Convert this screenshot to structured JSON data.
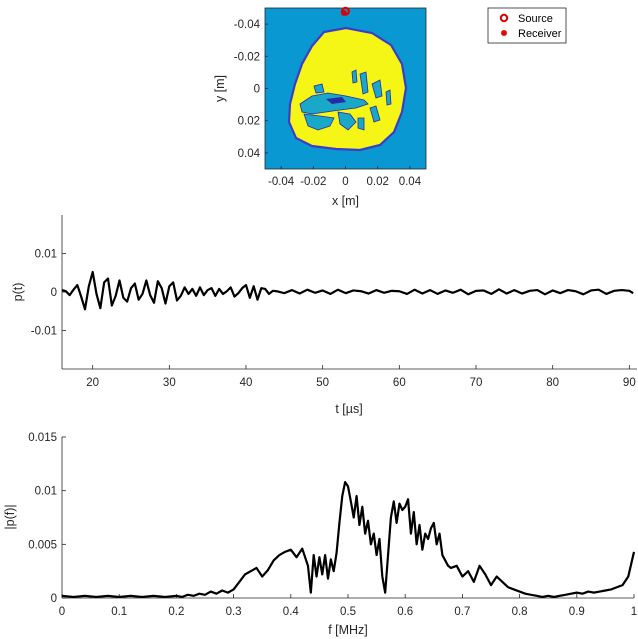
{
  "figure": {
    "legend": {
      "placement": "top-right",
      "entries": [
        {
          "label": "Source",
          "marker": "circle",
          "color": "#e00000"
        },
        {
          "label": "Receiver",
          "marker": "asterisk",
          "color": "#e00000"
        }
      ]
    }
  },
  "chart_data": [
    {
      "type": "heatmap",
      "xlabel": "x [m]",
      "ylabel": "y [m]",
      "xlim": [
        -0.05,
        0.05
      ],
      "ylim": [
        -0.05,
        0.05
      ],
      "y_reversed": true,
      "xticks": [
        -0.04,
        -0.02,
        0,
        0.02,
        0.04
      ],
      "xtick_labels": [
        "-0.04",
        "-0.02",
        "0",
        "0.02",
        "0.04"
      ],
      "yticks": [
        -0.04,
        -0.02,
        0,
        0.02,
        0.04
      ],
      "ytick_labels": [
        "-0.04",
        "-0.02",
        "0",
        "0.02",
        "0.04"
      ],
      "colors": {
        "background": "#0a98d2",
        "tissue": "#f5f516",
        "boundary": "#3c3cc8",
        "inclusion": "#1aa8c8",
        "core": "#2a2aa8"
      },
      "markers": {
        "source": {
          "x": 0.0,
          "y": -0.048
        },
        "receiver": {
          "x": -0.001,
          "y": -0.047
        }
      }
    },
    {
      "type": "line",
      "xlabel": "t [µs]",
      "ylabel": "p(t)",
      "xlim": [
        16,
        91
      ],
      "ylim": [
        -0.02,
        0.02
      ],
      "xticks": [
        20,
        30,
        40,
        50,
        60,
        70,
        80,
        90
      ],
      "xtick_labels": [
        "20",
        "30",
        "40",
        "50",
        "60",
        "70",
        "80",
        "90"
      ],
      "yticks": [
        -0.01,
        0,
        0.01
      ],
      "ytick_labels": [
        "-0.01",
        "0",
        "0.01"
      ],
      "series": [
        {
          "color": "#000000",
          "x": [
            16,
            16.5,
            17,
            17.5,
            18,
            18.5,
            19,
            19.5,
            20,
            20.5,
            21,
            21.5,
            22,
            22.5,
            23,
            23.5,
            24,
            24.5,
            25,
            25.5,
            26,
            26.5,
            27,
            27.5,
            28,
            28.5,
            29,
            29.5,
            30,
            30.5,
            31,
            31.5,
            32,
            32.5,
            33,
            33.5,
            34,
            34.5,
            35,
            35.5,
            36,
            36.5,
            37,
            37.5,
            38,
            38.5,
            39,
            39.5,
            40,
            40.5,
            41,
            41.5,
            42,
            42.5,
            43,
            43.5,
            44,
            45,
            46,
            47,
            48,
            49,
            50,
            51,
            52,
            53,
            54,
            55,
            56,
            57,
            58,
            59,
            60,
            61,
            62,
            63,
            64,
            65,
            66,
            67,
            68,
            69,
            70,
            71,
            72,
            73,
            74,
            75,
            76,
            77,
            78,
            79,
            80,
            81,
            82,
            83,
            84,
            85,
            86,
            87,
            88,
            89,
            90,
            90.5
          ],
          "y": [
            0.0005,
            0.0002,
            -0.0008,
            0.0006,
            0.0018,
            -0.0012,
            -0.0045,
            0.0015,
            0.0052,
            -0.0005,
            -0.0042,
            0.0025,
            0.0035,
            -0.0035,
            -0.001,
            0.003,
            -0.0015,
            -0.0025,
            0.001,
            0.0022,
            -0.002,
            -0.0005,
            0.003,
            -0.0008,
            -0.0028,
            0.0028,
            0.001,
            -0.003,
            0.0015,
            0.0025,
            -0.0022,
            -0.001,
            0.0012,
            -0.0005,
            0.0008,
            -0.001,
            0.0012,
            -0.0008,
            0.0005,
            0.001,
            -0.001,
            0.0008,
            -0.0005,
            0.0002,
            0.0012,
            -0.0012,
            -0.0003,
            0.001,
            0.0018,
            -0.0015,
            0.0015,
            -0.002,
            0.001,
            0.0008,
            -0.0005,
            0.0003,
            0.0002,
            -0.0003,
            0.0005,
            -0.0004,
            0.0006,
            -0.0002,
            0.0004,
            -0.0005,
            0.0006,
            -0.0003,
            0.0004,
            0.0002,
            -0.0004,
            0.0005,
            -0.0002,
            0.0003,
            0.0002,
            -0.0005,
            0.0006,
            -0.0004,
            0.0005,
            -0.0005,
            0.0004,
            -0.0002,
            0.0006,
            -0.0006,
            0.0003,
            0.0004,
            -0.0005,
            0.0007,
            -0.0004,
            0.0005,
            -0.0004,
            0.0003,
            0.0005,
            -0.0006,
            0.0004,
            -0.0003,
            0.0005,
            0.0002,
            -0.0006,
            0.0004,
            0.0006,
            -0.0005,
            0.0003,
            0.0005,
            0.0003,
            -0.0003
          ]
        }
      ]
    },
    {
      "type": "line",
      "xlabel": "f [MHz]",
      "ylabel": "|p(f)|",
      "xlim": [
        0,
        1
      ],
      "ylim": [
        0,
        0.015
      ],
      "xticks": [
        0,
        0.1,
        0.2,
        0.3,
        0.4,
        0.5,
        0.6,
        0.7,
        0.8,
        0.9,
        1
      ],
      "xtick_labels": [
        "0",
        "0.1",
        "0.2",
        "0.3",
        "0.4",
        "0.5",
        "0.6",
        "0.7",
        "0.8",
        "0.9",
        "1"
      ],
      "yticks": [
        0,
        0.005,
        0.01,
        0.015
      ],
      "ytick_labels": [
        "0",
        "0.005",
        "0.01",
        "0.015"
      ],
      "series": [
        {
          "color": "#000000",
          "x": [
            0,
            0.02,
            0.04,
            0.06,
            0.08,
            0.1,
            0.12,
            0.14,
            0.16,
            0.18,
            0.2,
            0.21,
            0.22,
            0.23,
            0.24,
            0.25,
            0.26,
            0.27,
            0.28,
            0.29,
            0.3,
            0.31,
            0.32,
            0.33,
            0.34,
            0.35,
            0.36,
            0.37,
            0.38,
            0.39,
            0.4,
            0.41,
            0.42,
            0.43,
            0.435,
            0.44,
            0.445,
            0.45,
            0.455,
            0.46,
            0.465,
            0.47,
            0.475,
            0.48,
            0.485,
            0.49,
            0.495,
            0.5,
            0.505,
            0.51,
            0.515,
            0.52,
            0.525,
            0.53,
            0.535,
            0.54,
            0.545,
            0.55,
            0.555,
            0.56,
            0.565,
            0.57,
            0.575,
            0.58,
            0.585,
            0.59,
            0.595,
            0.6,
            0.605,
            0.61,
            0.615,
            0.62,
            0.625,
            0.63,
            0.635,
            0.64,
            0.645,
            0.65,
            0.655,
            0.66,
            0.665,
            0.67,
            0.675,
            0.68,
            0.69,
            0.7,
            0.71,
            0.72,
            0.73,
            0.74,
            0.75,
            0.76,
            0.77,
            0.78,
            0.79,
            0.8,
            0.81,
            0.82,
            0.83,
            0.84,
            0.85,
            0.86,
            0.87,
            0.88,
            0.89,
            0.9,
            0.91,
            0.92,
            0.93,
            0.94,
            0.95,
            0.96,
            0.97,
            0.98,
            0.99,
            1.0
          ],
          "y": [
            0.0002,
            0.0001,
            0.0002,
            0.0001,
            0.0002,
            0.0001,
            0.0002,
            0.0001,
            0.0002,
            0.0001,
            0.0002,
            0.0001,
            0.0003,
            0.0002,
            0.0004,
            0.0003,
            0.0006,
            0.0004,
            0.0007,
            0.0005,
            0.0008,
            0.0015,
            0.0022,
            0.0025,
            0.0028,
            0.002,
            0.0026,
            0.0035,
            0.004,
            0.0043,
            0.0045,
            0.0038,
            0.0046,
            0.003,
            0.0005,
            0.004,
            0.002,
            0.0038,
            0.0022,
            0.004,
            0.0018,
            0.0036,
            0.0025,
            0.0042,
            0.007,
            0.0095,
            0.0108,
            0.0104,
            0.009,
            0.0075,
            0.0095,
            0.0068,
            0.0085,
            0.006,
            0.0072,
            0.005,
            0.006,
            0.004,
            0.0055,
            0.002,
            0.0005,
            0.004,
            0.0075,
            0.009,
            0.007,
            0.0088,
            0.0082,
            0.0085,
            0.0092,
            0.006,
            0.008,
            0.005,
            0.0068,
            0.0045,
            0.006,
            0.0055,
            0.0065,
            0.007,
            0.005,
            0.006,
            0.004,
            0.0035,
            0.003,
            0.0028,
            0.003,
            0.002,
            0.0025,
            0.0015,
            0.003,
            0.0022,
            0.0012,
            0.002,
            0.0015,
            0.001,
            0.0008,
            0.0006,
            0.0004,
            0.0003,
            0.0002,
            0.0001,
            0.0002,
            0.0001,
            0.0002,
            0.0003,
            0.0004,
            0.0005,
            0.0004,
            0.0006,
            0.0005,
            0.0006,
            0.0007,
            0.0008,
            0.001,
            0.0012,
            0.002,
            0.0043
          ]
        }
      ]
    }
  ]
}
